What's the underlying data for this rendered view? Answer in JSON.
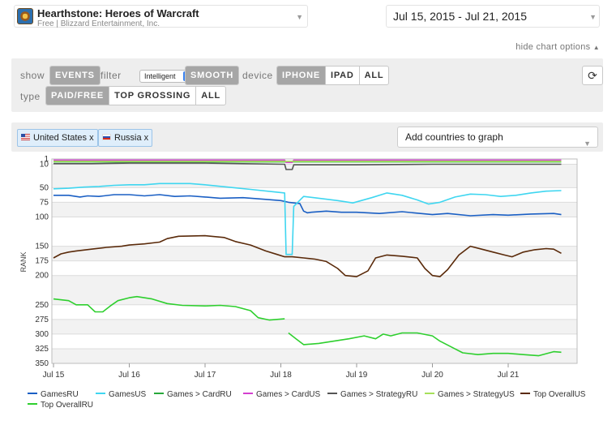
{
  "header": {
    "app_title": "Hearthstone: Heroes of Warcraft",
    "app_subtitle": "Free | Blizzard Entertainment, Inc.",
    "date_range": "Jul 15, 2015 - Jul 21, 2015",
    "hide_options": "hide chart options"
  },
  "options": {
    "show_label": "show",
    "events_label": "EVENTS",
    "filter_label": "filter",
    "filter_value": "Intelligent",
    "smooth_label": "SMOOTH",
    "device_label": "device",
    "devices": [
      "IPHONE",
      "IPAD",
      "ALL"
    ],
    "type_label": "type",
    "types": [
      "PAID/FREE",
      "TOP GROSSING",
      "ALL"
    ]
  },
  "countries": {
    "chips": [
      "United States x",
      "Russia x"
    ],
    "add_placeholder": "Add countries to graph"
  },
  "chart_data": {
    "type": "line",
    "ylabel": "RANK",
    "y_inverted": true,
    "ylim": [
      1,
      350
    ],
    "y_ticks": [
      1,
      10,
      50,
      75,
      100,
      150,
      175,
      200,
      250,
      275,
      300,
      325,
      350
    ],
    "x_ticks": [
      "Jul 15",
      "Jul 16",
      "Jul 17",
      "Jul 18",
      "Jul 19",
      "Jul 20",
      "Jul 21"
    ],
    "xlim": [
      0,
      6.7
    ],
    "grid": true,
    "series": [
      {
        "name": "GamesRU",
        "color": "#1a5fc4",
        "points": [
          [
            0,
            63
          ],
          [
            0.2,
            63
          ],
          [
            0.35,
            66
          ],
          [
            0.45,
            64
          ],
          [
            0.6,
            65
          ],
          [
            0.8,
            62
          ],
          [
            1,
            62
          ],
          [
            1.2,
            64
          ],
          [
            1.4,
            62
          ],
          [
            1.6,
            65
          ],
          [
            1.8,
            64
          ],
          [
            2,
            66
          ],
          [
            2.2,
            68
          ],
          [
            2.5,
            67
          ],
          [
            2.8,
            70
          ],
          [
            3,
            72
          ],
          [
            3.1,
            75
          ],
          [
            3.25,
            77
          ],
          [
            3.3,
            90
          ],
          [
            3.35,
            93
          ],
          [
            3.4,
            92
          ],
          [
            3.6,
            90
          ],
          [
            3.8,
            92
          ],
          [
            4,
            92
          ],
          [
            4.3,
            94
          ],
          [
            4.6,
            91
          ],
          [
            5,
            96
          ],
          [
            5.2,
            94
          ],
          [
            5.5,
            98
          ],
          [
            5.8,
            96
          ],
          [
            6,
            97
          ],
          [
            6.3,
            95
          ],
          [
            6.6,
            94
          ],
          [
            6.7,
            96
          ]
        ]
      },
      {
        "name": "GamesUS",
        "color": "#3fd6f0",
        "points": [
          [
            0,
            52
          ],
          [
            0.2,
            51
          ],
          [
            0.4,
            49
          ],
          [
            0.6,
            48
          ],
          [
            0.8,
            46
          ],
          [
            1,
            45
          ],
          [
            1.2,
            45
          ],
          [
            1.4,
            43
          ],
          [
            1.6,
            43
          ],
          [
            1.8,
            43
          ],
          [
            2,
            45
          ],
          [
            2.3,
            49
          ],
          [
            2.6,
            53
          ],
          [
            2.9,
            57
          ],
          [
            3.05,
            59
          ],
          [
            3.07,
            164
          ],
          [
            3.15,
            164
          ],
          [
            3.17,
            82
          ],
          [
            3.3,
            65
          ],
          [
            3.5,
            68
          ],
          [
            3.75,
            72
          ],
          [
            3.95,
            76
          ],
          [
            4.2,
            67
          ],
          [
            4.4,
            59
          ],
          [
            4.6,
            63
          ],
          [
            4.8,
            71
          ],
          [
            4.95,
            78
          ],
          [
            5.1,
            75
          ],
          [
            5.3,
            66
          ],
          [
            5.5,
            61
          ],
          [
            5.7,
            62
          ],
          [
            5.9,
            65
          ],
          [
            6.1,
            63
          ],
          [
            6.3,
            59
          ],
          [
            6.5,
            56
          ],
          [
            6.7,
            55
          ]
        ]
      },
      {
        "name": "Games > CardRU",
        "color": "#27a83a",
        "points": [
          [
            0,
            6
          ],
          [
            6.7,
            6
          ]
        ]
      },
      {
        "name": "Games > CardUS",
        "color": "#d43fcf",
        "points": [
          [
            0,
            3
          ],
          [
            3.05,
            3
          ],
          [
            3.07,
            7
          ],
          [
            3.15,
            7
          ],
          [
            3.17,
            3
          ],
          [
            6.7,
            3
          ]
        ]
      },
      {
        "name": "Games > StrategyRU",
        "color": "#555555",
        "points": [
          [
            0,
            9
          ],
          [
            0.5,
            9
          ],
          [
            1,
            8
          ],
          [
            2,
            8
          ],
          [
            2.5,
            9
          ],
          [
            3.05,
            10
          ],
          [
            3.07,
            19
          ],
          [
            3.15,
            19
          ],
          [
            3.17,
            11
          ],
          [
            4,
            11
          ],
          [
            5,
            10
          ],
          [
            6,
            10
          ],
          [
            6.7,
            10
          ]
        ]
      },
      {
        "name": "Games > StrategyUS",
        "color": "#a6e05a",
        "points": [
          [
            0,
            5
          ],
          [
            6.7,
            5
          ]
        ]
      },
      {
        "name": "Top OverallUS",
        "color": "#5a2a0a",
        "points": [
          [
            0,
            170
          ],
          [
            0.1,
            163
          ],
          [
            0.2,
            160
          ],
          [
            0.3,
            158
          ],
          [
            0.5,
            155
          ],
          [
            0.7,
            152
          ],
          [
            0.9,
            150
          ],
          [
            1,
            148
          ],
          [
            1.2,
            146
          ],
          [
            1.4,
            143
          ],
          [
            1.5,
            137
          ],
          [
            1.65,
            133
          ],
          [
            2,
            132
          ],
          [
            2.25,
            135
          ],
          [
            2.4,
            142
          ],
          [
            2.6,
            148
          ],
          [
            2.8,
            158
          ],
          [
            2.95,
            164
          ],
          [
            3.05,
            168
          ],
          [
            3.15,
            168
          ],
          [
            3.3,
            170
          ],
          [
            3.45,
            172
          ],
          [
            3.6,
            176
          ],
          [
            3.75,
            188
          ],
          [
            3.85,
            200
          ],
          [
            4,
            202
          ],
          [
            4.15,
            192
          ],
          [
            4.25,
            170
          ],
          [
            4.4,
            165
          ],
          [
            4.6,
            167
          ],
          [
            4.8,
            170
          ],
          [
            4.9,
            188
          ],
          [
            5,
            200
          ],
          [
            5.1,
            202
          ],
          [
            5.2,
            190
          ],
          [
            5.35,
            165
          ],
          [
            5.5,
            150
          ],
          [
            5.65,
            155
          ],
          [
            5.8,
            160
          ],
          [
            5.95,
            165
          ],
          [
            6.05,
            168
          ],
          [
            6.2,
            160
          ],
          [
            6.35,
            156
          ],
          [
            6.5,
            154
          ],
          [
            6.6,
            155
          ],
          [
            6.7,
            162
          ]
        ]
      },
      {
        "name": "Top OverallRU",
        "color": "#2ecf2e",
        "points": [
          [
            0,
            240
          ],
          [
            0.2,
            243
          ],
          [
            0.3,
            250
          ],
          [
            0.45,
            250
          ],
          [
            0.55,
            262
          ],
          [
            0.65,
            262
          ],
          [
            0.75,
            252
          ],
          [
            0.85,
            243
          ],
          [
            1,
            238
          ],
          [
            1.1,
            236
          ],
          [
            1.3,
            240
          ],
          [
            1.5,
            248
          ],
          [
            1.7,
            251
          ],
          [
            2,
            252
          ],
          [
            2.2,
            251
          ],
          [
            2.4,
            253
          ],
          [
            2.6,
            260
          ],
          [
            2.7,
            272
          ],
          [
            2.85,
            276
          ],
          [
            3.05,
            274
          ],
          [
            null,
            null
          ],
          [
            3.1,
            298
          ],
          [
            3.2,
            308
          ],
          [
            3.3,
            318
          ],
          [
            3.5,
            316
          ],
          [
            3.7,
            312
          ],
          [
            3.9,
            308
          ],
          [
            4.1,
            303
          ],
          [
            4.25,
            308
          ],
          [
            4.35,
            300
          ],
          [
            4.45,
            303
          ],
          [
            4.6,
            298
          ],
          [
            4.8,
            298
          ],
          [
            5,
            303
          ],
          [
            5.1,
            312
          ],
          [
            5.25,
            322
          ],
          [
            5.4,
            332
          ],
          [
            5.6,
            335
          ],
          [
            5.8,
            333
          ],
          [
            6,
            333
          ],
          [
            6.2,
            335
          ],
          [
            6.4,
            337
          ],
          [
            6.6,
            330
          ],
          [
            6.7,
            331
          ]
        ]
      }
    ],
    "legend": [
      "GamesRU",
      "GamesUS",
      "Games > CardRU",
      "Games > CardUS",
      "Games > StrategyRU",
      "Games > StrategyUS",
      "Top OverallUS",
      "Top OverallRU"
    ],
    "legend_placement": "bottom"
  }
}
